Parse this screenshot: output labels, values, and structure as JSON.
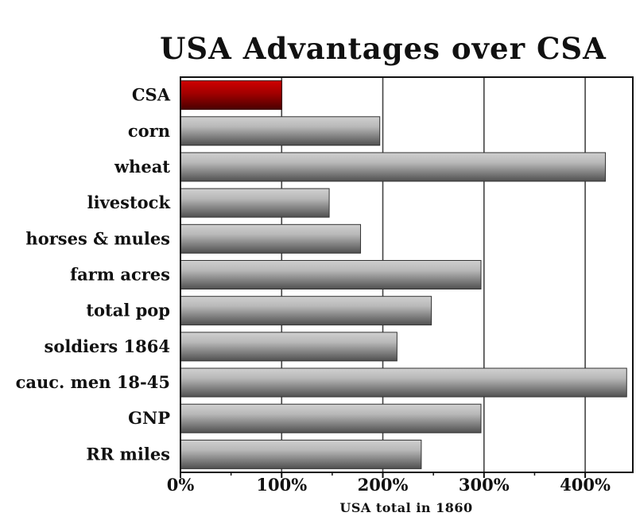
{
  "chart_data": {
    "type": "bar",
    "orientation": "horizontal",
    "title": "USA Advantages over CSA",
    "xlabel": "USA total in 1860",
    "ylabel": "",
    "xlim": [
      0,
      450
    ],
    "xticks": [
      0,
      100,
      200,
      300,
      400
    ],
    "xtick_labels": [
      "0%",
      "100%",
      "200%",
      "300%",
      "400%"
    ],
    "categories": [
      "CSA",
      "corn",
      "wheat",
      "livestock",
      "horses & mules",
      "farm acres",
      "total pop",
      "soldiers 1864",
      "cauc. men 18-45",
      "GNP",
      "RR miles"
    ],
    "values": [
      100,
      197,
      420,
      147,
      178,
      297,
      248,
      214,
      441,
      297,
      238
    ],
    "grid": "vertical",
    "colors": {
      "highlight": "#b00000",
      "highlight_dark": "#5a0000",
      "bar_light": "#c8c8c8",
      "bar_dark": "#555555",
      "axis": "#111111",
      "grid": "#444444"
    }
  }
}
